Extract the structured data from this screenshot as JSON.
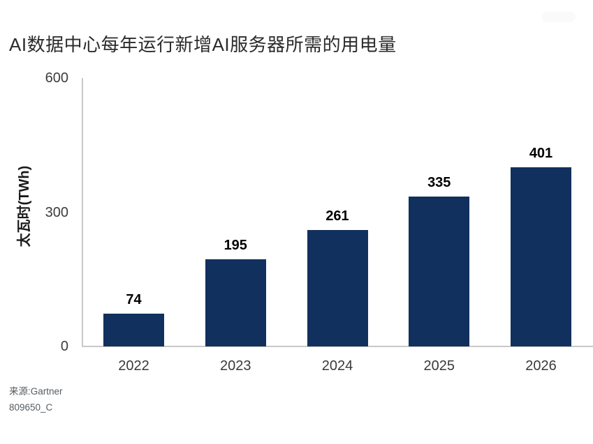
{
  "title": "AI数据中心每年运行新增AI服务器所需的用电量",
  "source": {
    "line1": "来源:Gartner",
    "line2": "809650_C"
  },
  "chart_data": {
    "type": "bar",
    "title": "AI数据中心每年运行新增AI服务器所需的用电量",
    "categories": [
      "2022",
      "2023",
      "2024",
      "2025",
      "2026"
    ],
    "values": [
      74,
      195,
      261,
      335,
      401
    ],
    "data_labels": [
      "74",
      "195",
      "261",
      "335",
      "401"
    ],
    "xlabel": "",
    "ylabel": "太瓦时(TWh)",
    "ylim": [
      0,
      600
    ],
    "yticks": [
      0,
      300,
      600
    ],
    "grid": false,
    "legend": "none",
    "bar_color": "#11305d"
  },
  "colors": {
    "bar": "#11305d",
    "axis_line": "#c9c9c9",
    "title_text": "#2b2b2b",
    "tick_text": "#3c3c3c",
    "value_text": "#000000",
    "source_text": "#565b60"
  }
}
